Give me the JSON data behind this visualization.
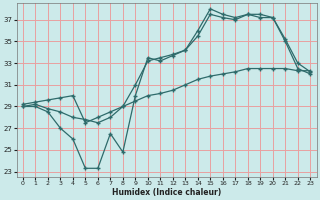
{
  "xlabel": "Humidex (Indice chaleur)",
  "xlim": [
    -0.5,
    23.5
  ],
  "ylim": [
    22.5,
    38.5
  ],
  "yticks": [
    23,
    25,
    27,
    29,
    31,
    33,
    35,
    37
  ],
  "xticks": [
    0,
    1,
    2,
    3,
    4,
    5,
    6,
    7,
    8,
    9,
    10,
    11,
    12,
    13,
    14,
    15,
    16,
    17,
    18,
    19,
    20,
    21,
    22,
    23
  ],
  "bg_color": "#cceaea",
  "line_color": "#2e6b6b",
  "grid_color": "#e8a0a0",
  "line1_x": [
    0,
    1,
    2,
    3,
    4,
    5,
    6,
    7,
    8,
    9,
    10,
    11,
    12,
    13,
    14,
    15,
    16,
    17,
    18,
    19,
    20,
    21,
    22,
    23
  ],
  "line1_y": [
    29.0,
    29.0,
    28.5,
    27.0,
    26.0,
    23.3,
    23.3,
    26.5,
    24.8,
    30.0,
    33.5,
    33.2,
    33.7,
    34.2,
    36.0,
    38.0,
    37.5,
    37.2,
    37.5,
    37.5,
    37.2,
    35.0,
    32.5,
    32.0
  ],
  "line2_x": [
    0,
    1,
    2,
    3,
    4,
    5,
    6,
    7,
    8,
    9,
    10,
    11,
    12,
    13,
    14,
    15,
    16,
    17,
    18,
    19,
    20,
    21,
    22,
    23
  ],
  "line2_y": [
    29.0,
    29.2,
    28.8,
    28.5,
    28.0,
    27.8,
    27.5,
    28.0,
    29.0,
    31.0,
    33.2,
    33.5,
    33.8,
    34.2,
    35.5,
    37.5,
    37.2,
    37.0,
    37.5,
    37.2,
    37.2,
    35.2,
    33.0,
    32.2
  ],
  "line3_x": [
    0,
    1,
    2,
    3,
    4,
    5,
    6,
    7,
    8,
    9,
    10,
    11,
    12,
    13,
    14,
    15,
    16,
    17,
    18,
    19,
    20,
    21,
    22,
    23
  ],
  "line3_y": [
    29.2,
    29.4,
    29.6,
    29.8,
    30.0,
    27.5,
    28.0,
    28.5,
    29.0,
    29.5,
    30.0,
    30.2,
    30.5,
    31.0,
    31.5,
    31.8,
    32.0,
    32.2,
    32.5,
    32.5,
    32.5,
    32.5,
    32.3,
    32.3
  ]
}
